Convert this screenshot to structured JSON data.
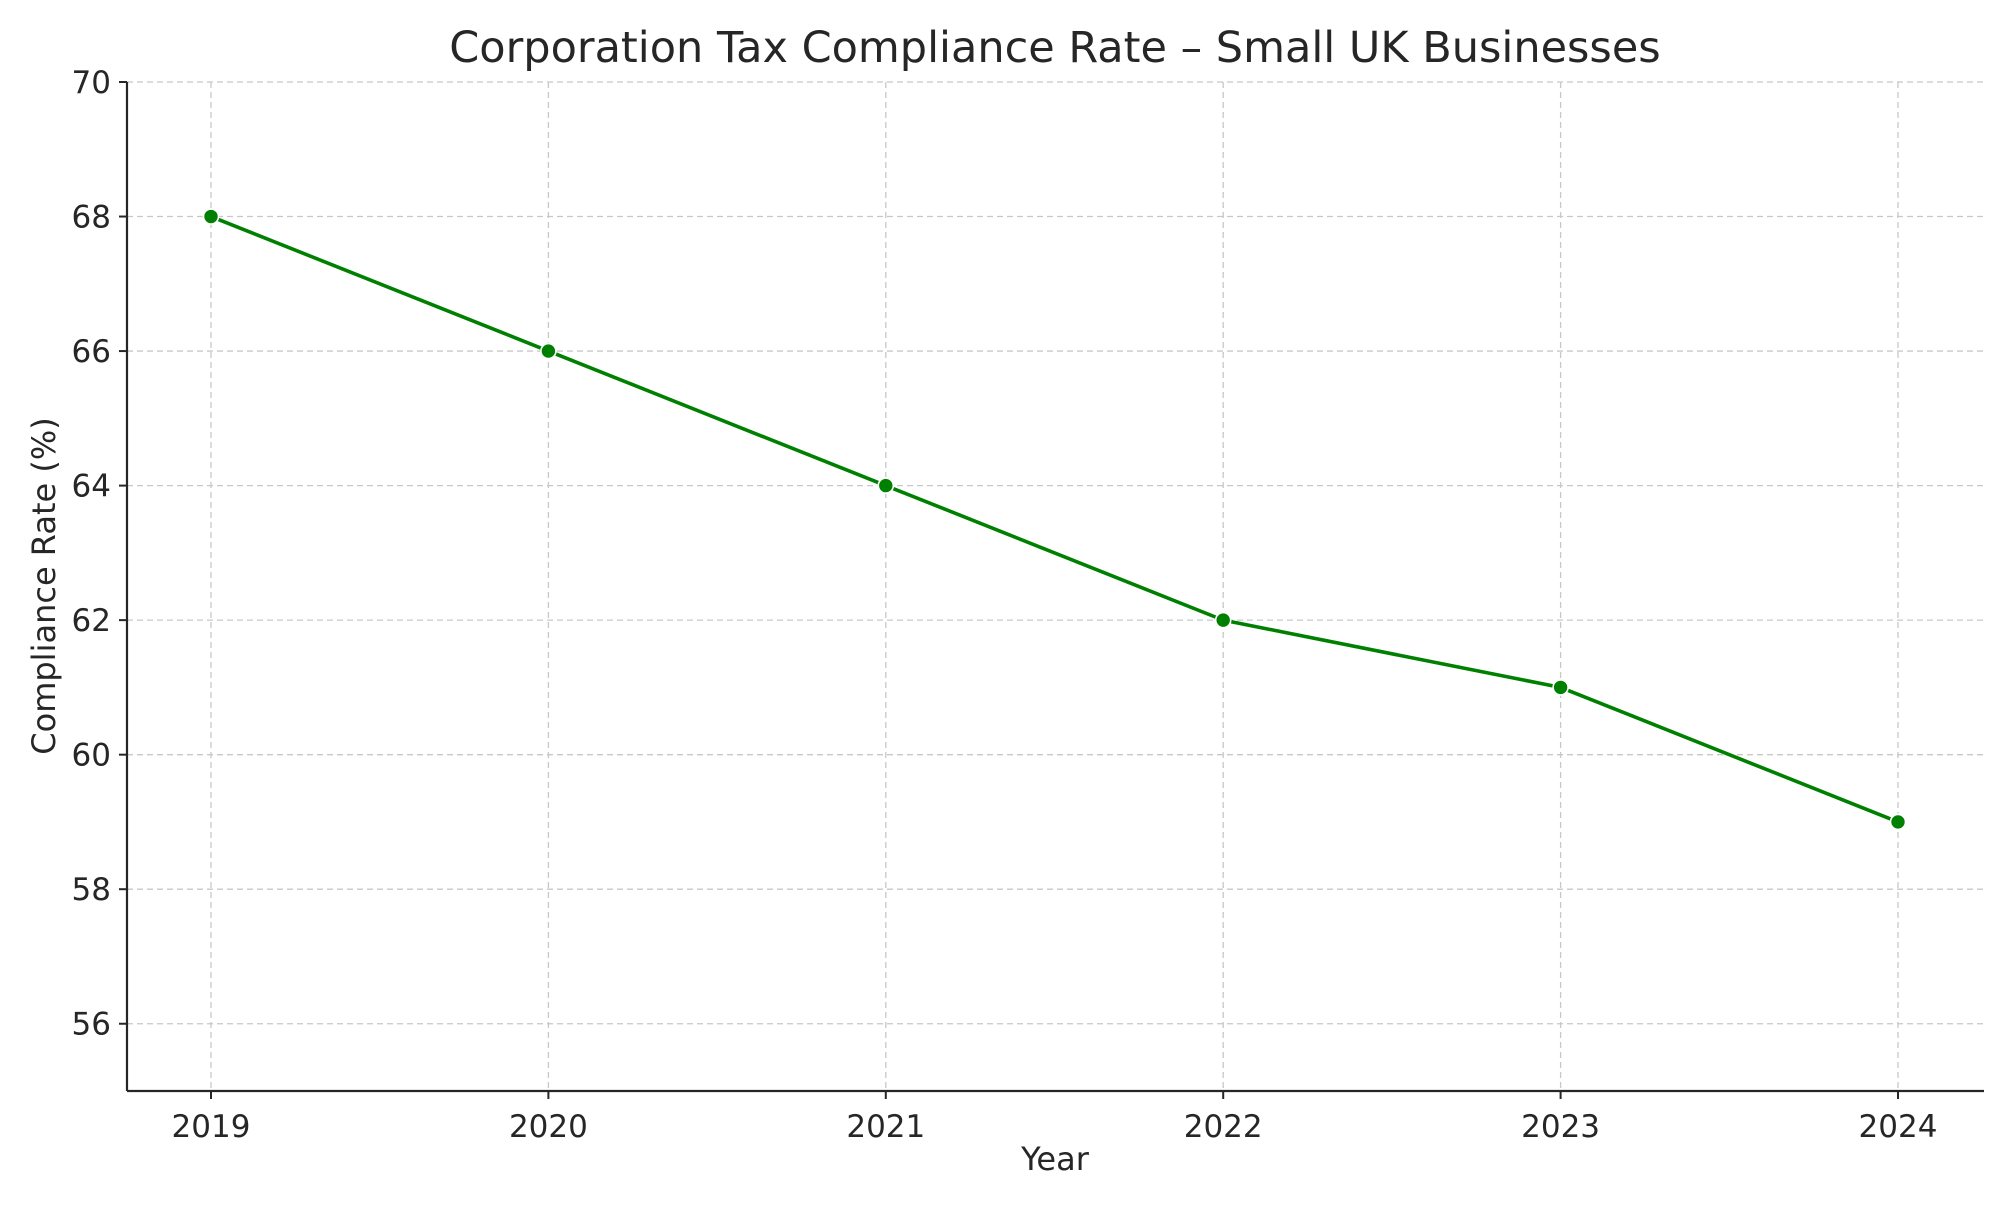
{
  "chart_data": {
    "type": "line",
    "title": "Corporation Tax Compliance Rate – Small UK Businesses",
    "xlabel": "Year",
    "ylabel": "Compliance Rate (%)",
    "x": [
      "2019",
      "2020",
      "2021",
      "2022",
      "2023",
      "2024"
    ],
    "series": [
      {
        "values": [
          68,
          66,
          64,
          62,
          61,
          59
        ]
      }
    ],
    "ylim": [
      55,
      70
    ],
    "yticks": [
      56,
      58,
      60,
      62,
      64,
      66,
      68,
      70
    ],
    "grid": true,
    "line_color": "#008000",
    "marker_color": "#008000"
  }
}
